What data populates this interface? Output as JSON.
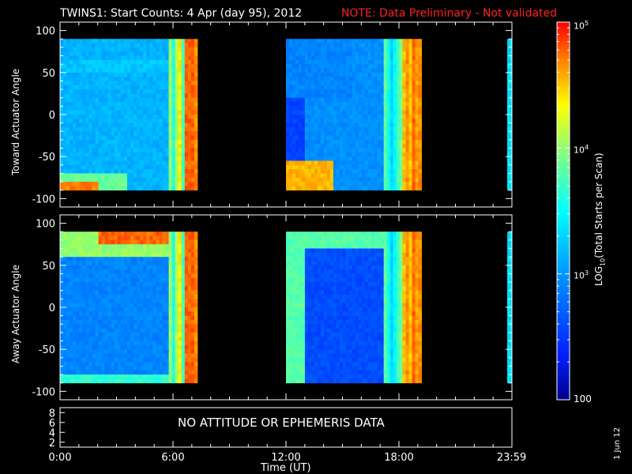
{
  "header": {
    "title": "TWINS1: Start Counts:  4 Apr (day  95), 2012",
    "note": "NOTE: Data Preliminary - Not validated"
  },
  "panels": {
    "top_ylabel": "Toward Actuator Angle",
    "bottom_ylabel": "Away Actuator Angle",
    "status_message": "NO ATTITUDE OR EPHEMERIS DATA",
    "xlabel": "Time (UT)"
  },
  "colorbar": {
    "label": "LOG10(Total Starts per Scan)",
    "tick_labels": [
      "10^5",
      "10^4",
      "10^3",
      "100"
    ]
  },
  "datestamp": "1 Jun 12",
  "chart_data": [
    {
      "type": "heatmap",
      "title": "TWINS1: Start Counts:  4 Apr (day  95), 2012",
      "ylabel": "Toward Actuator Angle",
      "xlim_hours": [
        0,
        24
      ],
      "ylim": [
        -110,
        110
      ],
      "yticks": [
        100,
        50,
        0,
        -50,
        -100
      ],
      "data_extent_y": [
        -90,
        90
      ],
      "coverage_hours": [
        [
          0,
          7.3
        ],
        [
          12,
          19.2
        ],
        [
          23.75,
          24
        ]
      ],
      "color_scale": "log",
      "color_range": [
        100,
        100000
      ]
    },
    {
      "type": "heatmap",
      "ylabel": "Away Actuator Angle",
      "xlim_hours": [
        0,
        24
      ],
      "ylim": [
        -110,
        110
      ],
      "yticks": [
        100,
        50,
        0,
        -50,
        -100
      ],
      "data_extent_y": [
        -90,
        90
      ],
      "coverage_hours": [
        [
          0,
          7.3
        ],
        [
          12,
          19.2
        ],
        [
          23.75,
          24
        ]
      ],
      "color_scale": "log",
      "color_range": [
        100,
        100000
      ]
    },
    {
      "type": "line",
      "yticks": [
        8,
        6,
        4,
        2
      ],
      "ylim": [
        1,
        9
      ],
      "xticks": [
        "0:00",
        "6:00",
        "12:00",
        "18:00",
        "23:59"
      ],
      "xtick_hours": [
        0,
        6,
        12,
        18,
        23.983
      ],
      "xlabel": "Time (UT)",
      "annotation": "NO ATTITUDE OR EPHEMERIS DATA"
    }
  ]
}
